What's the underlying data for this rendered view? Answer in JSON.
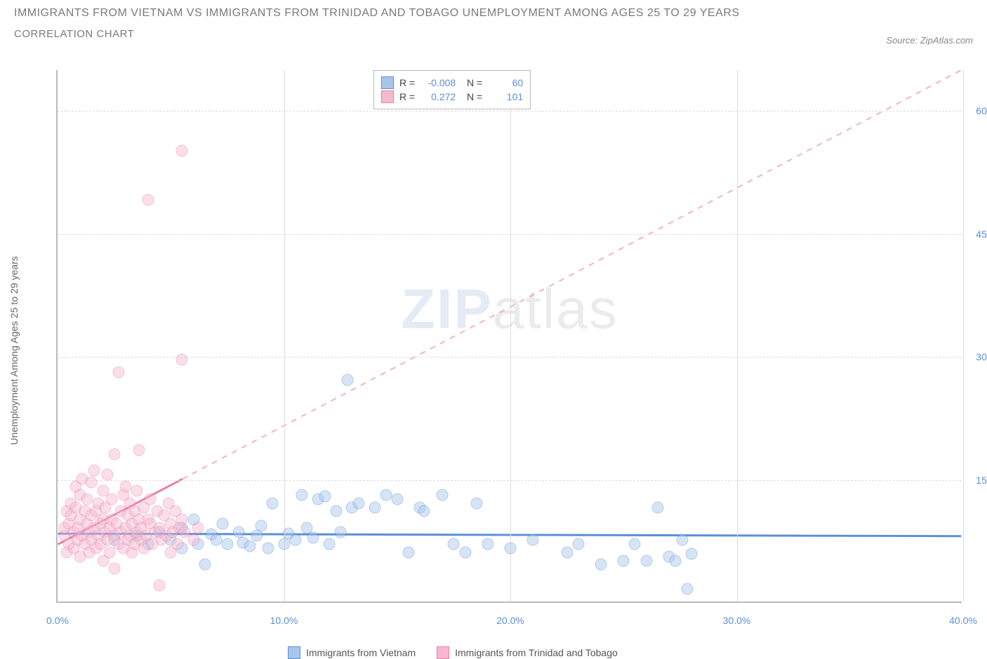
{
  "header": {
    "title": "IMMIGRANTS FROM VIETNAM VS IMMIGRANTS FROM TRINIDAD AND TOBAGO UNEMPLOYMENT AMONG AGES 25 TO 29 YEARS",
    "subtitle": "CORRELATION CHART",
    "source": "Source: ZipAtlas.com"
  },
  "chart": {
    "type": "scatter",
    "y_label": "Unemployment Among Ages 25 to 29 years",
    "x_min": 0,
    "x_max": 40,
    "y_min": 0,
    "y_max": 65,
    "x_ticks": [
      0,
      10,
      20,
      30,
      40
    ],
    "x_tick_labels": [
      "0.0%",
      "10.0%",
      "20.0%",
      "30.0%",
      "40.0%"
    ],
    "y_ticks": [
      15,
      30,
      45,
      60
    ],
    "y_tick_labels": [
      "15.0%",
      "30.0%",
      "45.0%",
      "60.0%"
    ],
    "background_color": "#ffffff",
    "grid_color": "#dddddd",
    "marker_radius": 8.5,
    "marker_opacity": 0.45,
    "series": [
      {
        "name": "Immigrants from Vietnam",
        "color": "#5b8fd6",
        "fill": "#a8c5ea",
        "R": "-0.008",
        "N": "60",
        "trend": {
          "y_start": 8.3,
          "y_end": 8.0,
          "solid_until_x": 40,
          "dash": false
        },
        "points": [
          [
            2.5,
            7.5
          ],
          [
            3.5,
            8
          ],
          [
            4,
            7
          ],
          [
            4.5,
            8.5
          ],
          [
            5,
            7.5
          ],
          [
            5.5,
            9
          ],
          [
            5.5,
            6.5
          ],
          [
            6,
            10
          ],
          [
            6.2,
            7
          ],
          [
            6.5,
            4.5
          ],
          [
            6.8,
            8.2
          ],
          [
            7,
            7.5
          ],
          [
            7.3,
            9.5
          ],
          [
            7.5,
            7
          ],
          [
            8,
            8.5
          ],
          [
            8.2,
            7.2
          ],
          [
            8.5,
            6.8
          ],
          [
            8.8,
            8
          ],
          [
            9,
            9.2
          ],
          [
            9.3,
            6.5
          ],
          [
            9.5,
            12
          ],
          [
            10,
            7
          ],
          [
            10.2,
            8.3
          ],
          [
            10.5,
            7.5
          ],
          [
            10.8,
            13
          ],
          [
            11,
            9
          ],
          [
            11.3,
            7.8
          ],
          [
            11.5,
            12.5
          ],
          [
            11.8,
            12.8
          ],
          [
            12,
            7
          ],
          [
            12.3,
            11
          ],
          [
            12.5,
            8.5
          ],
          [
            12.8,
            27
          ],
          [
            13,
            11.5
          ],
          [
            13.3,
            12
          ],
          [
            14,
            11.5
          ],
          [
            14.5,
            13
          ],
          [
            15,
            12.5
          ],
          [
            15.5,
            6
          ],
          [
            16,
            11.5
          ],
          [
            16.2,
            11
          ],
          [
            17,
            13
          ],
          [
            17.5,
            7
          ],
          [
            18,
            6
          ],
          [
            18.5,
            12
          ],
          [
            19,
            7
          ],
          [
            20,
            6.5
          ],
          [
            21,
            7.5
          ],
          [
            22.5,
            6
          ],
          [
            23,
            7
          ],
          [
            24,
            4.5
          ],
          [
            25,
            5
          ],
          [
            25.5,
            7
          ],
          [
            26,
            5
          ],
          [
            26.5,
            11.5
          ],
          [
            27,
            5.5
          ],
          [
            27.3,
            5
          ],
          [
            27.6,
            7.5
          ],
          [
            27.8,
            1.5
          ],
          [
            28,
            5.8
          ]
        ]
      },
      {
        "name": "Immigrants from Trinidad and Tobago",
        "color": "#e87fa8",
        "fill": "#f5b8d0",
        "R": "0.272",
        "N": "101",
        "trend": {
          "y_start": 7,
          "y_end": 65,
          "solid_until_x": 5.5,
          "dash": true
        },
        "points": [
          [
            0.3,
            8
          ],
          [
            0.3,
            9
          ],
          [
            0.4,
            6
          ],
          [
            0.4,
            11
          ],
          [
            0.5,
            9.5
          ],
          [
            0.5,
            7
          ],
          [
            0.6,
            10.5
          ],
          [
            0.6,
            12
          ],
          [
            0.7,
            8.5
          ],
          [
            0.7,
            6.5
          ],
          [
            0.8,
            14
          ],
          [
            0.8,
            11.5
          ],
          [
            0.9,
            7.5
          ],
          [
            0.9,
            9
          ],
          [
            1,
            10
          ],
          [
            1,
            13
          ],
          [
            1,
            5.5
          ],
          [
            1.1,
            8
          ],
          [
            1.1,
            15
          ],
          [
            1.2,
            7
          ],
          [
            1.2,
            11
          ],
          [
            1.3,
            9.5
          ],
          [
            1.3,
            12.5
          ],
          [
            1.4,
            6
          ],
          [
            1.4,
            8.5
          ],
          [
            1.5,
            10.5
          ],
          [
            1.5,
            7.5
          ],
          [
            1.5,
            14.5
          ],
          [
            1.6,
            9
          ],
          [
            1.6,
            16
          ],
          [
            1.7,
            11
          ],
          [
            1.7,
            6.5
          ],
          [
            1.8,
            8
          ],
          [
            1.8,
            12
          ],
          [
            1.9,
            9.5
          ],
          [
            1.9,
            7
          ],
          [
            2,
            13.5
          ],
          [
            2,
            10
          ],
          [
            2,
            5
          ],
          [
            2.1,
            8.5
          ],
          [
            2.1,
            11.5
          ],
          [
            2.2,
            7.5
          ],
          [
            2.2,
            15.5
          ],
          [
            2.3,
            9
          ],
          [
            2.3,
            6
          ],
          [
            2.4,
            10
          ],
          [
            2.4,
            12.5
          ],
          [
            2.5,
            8
          ],
          [
            2.5,
            18
          ],
          [
            2.5,
            4
          ],
          [
            2.6,
            9.5
          ],
          [
            2.7,
            7
          ],
          [
            2.7,
            28
          ],
          [
            2.8,
            11
          ],
          [
            2.8,
            8.5
          ],
          [
            2.9,
            6.5
          ],
          [
            2.9,
            13
          ],
          [
            3,
            9
          ],
          [
            3,
            14
          ],
          [
            3.1,
            7.5
          ],
          [
            3.1,
            10.5
          ],
          [
            3.2,
            8
          ],
          [
            3.2,
            12
          ],
          [
            3.3,
            6
          ],
          [
            3.3,
            9.5
          ],
          [
            3.4,
            11
          ],
          [
            3.4,
            7
          ],
          [
            3.5,
            8.5
          ],
          [
            3.5,
            13.5
          ],
          [
            3.6,
            10
          ],
          [
            3.6,
            18.5
          ],
          [
            3.7,
            7.5
          ],
          [
            3.7,
            9
          ],
          [
            3.8,
            11.5
          ],
          [
            3.8,
            6.5
          ],
          [
            3.9,
            8
          ],
          [
            4,
            10
          ],
          [
            4,
            49
          ],
          [
            4.1,
            9.5
          ],
          [
            4.1,
            12.5
          ],
          [
            4.2,
            7
          ],
          [
            4.3,
            8.5
          ],
          [
            4.4,
            11
          ],
          [
            4.5,
            9
          ],
          [
            4.5,
            2
          ],
          [
            4.6,
            7.5
          ],
          [
            4.7,
            10.5
          ],
          [
            4.8,
            8
          ],
          [
            4.9,
            12
          ],
          [
            5,
            9.5
          ],
          [
            5,
            6
          ],
          [
            5.1,
            8.5
          ],
          [
            5.2,
            11
          ],
          [
            5.3,
            7
          ],
          [
            5.4,
            9
          ],
          [
            5.5,
            55
          ],
          [
            5.5,
            10
          ],
          [
            5.5,
            29.5
          ],
          [
            5.6,
            8.5
          ],
          [
            6,
            7.5
          ],
          [
            6.2,
            9
          ]
        ]
      }
    ]
  },
  "legend_bottom": {
    "s1_label": "Immigrants from Vietnam",
    "s2_label": "Immigrants from Trinidad and Tobago"
  },
  "watermark": {
    "p1": "ZIP",
    "p2": "atlas"
  }
}
